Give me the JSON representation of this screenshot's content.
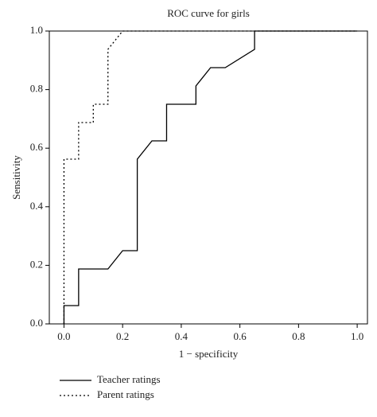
{
  "chart_data": {
    "type": "line",
    "title": "ROC curve for girls",
    "x_label": "1 − specificity",
    "y_label": "Sensitivity",
    "xlim": [
      -0.05,
      1.035
    ],
    "ylim": [
      0,
      1
    ],
    "xticks": [
      {
        "value": 0,
        "label": "0.0"
      },
      {
        "value": 0.2,
        "label": "0.2"
      },
      {
        "value": 0.4,
        "label": "0.4"
      },
      {
        "value": 0.6,
        "label": "0.6"
      },
      {
        "value": 0.8,
        "label": "0.8"
      },
      {
        "value": 1,
        "label": "1.0"
      }
    ],
    "yticks": [
      {
        "value": 0,
        "label": "0.0"
      },
      {
        "value": 0.2,
        "label": "0.2"
      },
      {
        "value": 0.4,
        "label": "0.4"
      },
      {
        "value": 0.6,
        "label": "0.6"
      },
      {
        "value": 0.8,
        "label": "0.8"
      },
      {
        "value": 1,
        "label": "1.0"
      }
    ],
    "legend": "bottom-left",
    "series": [
      {
        "name": "Teacher ratings",
        "color": "#000000",
        "linestyle": "solid",
        "x": [
          0,
          0,
          0.05,
          0.05,
          0.15,
          0.2,
          0.25,
          0.25,
          0.3,
          0.35,
          0.35,
          0.45,
          0.45,
          0.5,
          0.55,
          0.65,
          0.65,
          1.0
        ],
        "values": [
          0,
          0.0625,
          0.0625,
          0.1875,
          0.1875,
          0.25,
          0.25,
          0.5625,
          0.625,
          0.625,
          0.75,
          0.75,
          0.8125,
          0.875,
          0.875,
          0.9375,
          1.0,
          1.0
        ]
      },
      {
        "name": "Parent ratings",
        "color": "#000000",
        "linestyle": "dotted",
        "x": [
          0,
          0,
          0.05,
          0.05,
          0.1,
          0.1,
          0.15,
          0.15,
          0.2,
          1.0
        ],
        "values": [
          0,
          0.5625,
          0.5625,
          0.6875,
          0.6875,
          0.75,
          0.75,
          0.9375,
          1.0,
          1.0
        ]
      }
    ]
  }
}
